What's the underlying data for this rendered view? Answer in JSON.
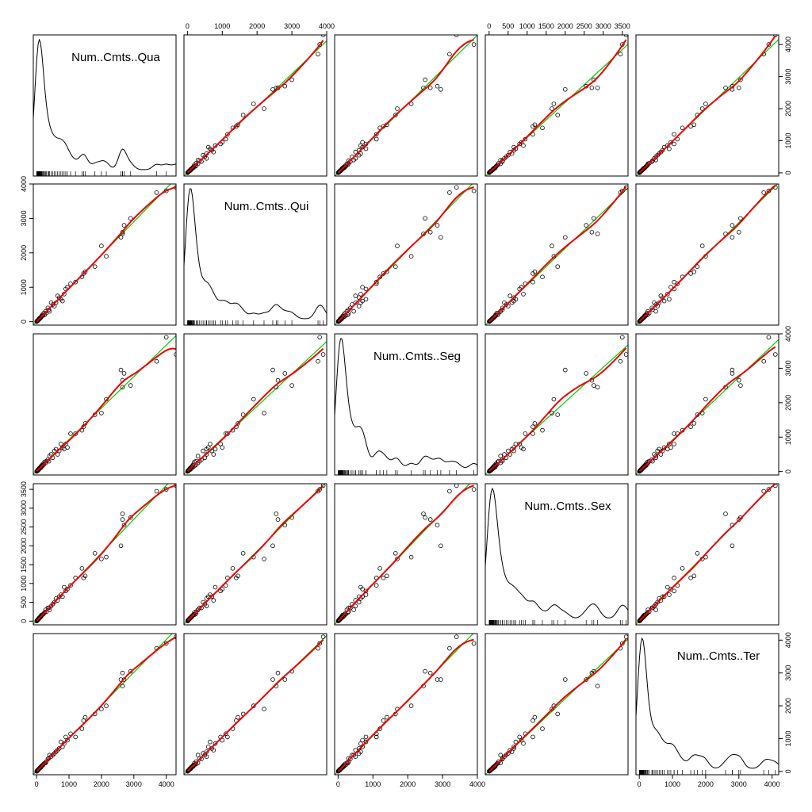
{
  "chart_data": {
    "type": "scatter",
    "variables": [
      "Num..Cmts..Qua",
      "Num..Cmts..Qui",
      "Num..Cmts..Seg",
      "Num..Cmts..Sex",
      "Num..Cmts..Ter"
    ],
    "axis_ranges": [
      [
        -100,
        4300
      ],
      [
        -100,
        4000
      ],
      [
        -100,
        4000
      ],
      [
        -100,
        3650
      ],
      [
        -100,
        4200
      ]
    ],
    "axis_ticks": [
      [
        0,
        1000,
        2000,
        3000,
        4000
      ],
      [
        0,
        1000,
        2000,
        3000,
        4000
      ],
      [
        0,
        1000,
        2000,
        3000,
        4000
      ],
      [
        0,
        500,
        1000,
        1500,
        2000,
        2500,
        3000,
        3500
      ],
      [
        0,
        1000,
        2000,
        3000,
        4000
      ]
    ],
    "panel_content": {
      "diagonal": "density curve with rug marks",
      "off_diagonal": "scatter points with linear fit and smooth fit"
    },
    "colors": {
      "points": "#000000",
      "linear_fit": "#00cc00",
      "smooth_fit": "#ee0000"
    },
    "observations": [
      [
        4300,
        3900,
        3400,
        3600,
        4100
      ],
      [
        4000,
        3800,
        3900,
        3500,
        3900
      ],
      [
        3700,
        3750,
        3200,
        3450,
        3750
      ],
      [
        2900,
        3000,
        2500,
        2750,
        3050
      ],
      [
        2700,
        2800,
        2850,
        2550,
        2800
      ],
      [
        2650,
        2600,
        2650,
        2700,
        3000
      ],
      [
        2650,
        2550,
        2450,
        2850,
        2600
      ],
      [
        2600,
        2450,
        2950,
        2000,
        2800
      ],
      [
        2150,
        1900,
        2100,
        1700,
        2000
      ],
      [
        2000,
        2200,
        1700,
        1650,
        1900
      ],
      [
        1800,
        1600,
        1650,
        1800,
        1750
      ],
      [
        1500,
        1450,
        1400,
        1200,
        1650
      ],
      [
        1450,
        1400,
        1300,
        1150,
        1550
      ],
      [
        1400,
        1300,
        1200,
        1400,
        1300
      ],
      [
        1200,
        1150,
        1100,
        1150,
        1050
      ],
      [
        1050,
        1100,
        1100,
        950,
        1150
      ],
      [
        950,
        1000,
        700,
        850,
        950
      ],
      [
        900,
        950,
        800,
        800,
        1050
      ],
      [
        850,
        800,
        650,
        900,
        850
      ],
      [
        800,
        600,
        700,
        650,
        750
      ],
      [
        750,
        650,
        800,
        700,
        900
      ],
      [
        700,
        700,
        600,
        650,
        700
      ],
      [
        650,
        750,
        500,
        550,
        650
      ],
      [
        600,
        550,
        650,
        600,
        600
      ],
      [
        550,
        450,
        600,
        500,
        550
      ],
      [
        500,
        500,
        400,
        450,
        500
      ],
      [
        450,
        550,
        500,
        400,
        450
      ],
      [
        400,
        300,
        450,
        300,
        500
      ],
      [
        380,
        350,
        300,
        350,
        400
      ],
      [
        350,
        400,
        350,
        350,
        380
      ],
      [
        300,
        250,
        300,
        250,
        300
      ],
      [
        280,
        300,
        250,
        300,
        260
      ],
      [
        250,
        200,
        280,
        230,
        250
      ],
      [
        220,
        250,
        200,
        200,
        230
      ],
      [
        200,
        180,
        220,
        180,
        200
      ],
      [
        180,
        200,
        160,
        170,
        190
      ],
      [
        160,
        150,
        180,
        150,
        170
      ],
      [
        150,
        160,
        130,
        160,
        150
      ],
      [
        140,
        130,
        150,
        120,
        140
      ],
      [
        130,
        120,
        110,
        130,
        120
      ],
      [
        120,
        110,
        120,
        110,
        130
      ],
      [
        110,
        100,
        100,
        100,
        110
      ],
      [
        100,
        90,
        110,
        90,
        100
      ],
      [
        90,
        100,
        80,
        95,
        90
      ],
      [
        80,
        70,
        90,
        80,
        85
      ],
      [
        70,
        80,
        60,
        70,
        75
      ],
      [
        65,
        60,
        70,
        60,
        65
      ],
      [
        60,
        55,
        50,
        55,
        60
      ],
      [
        55,
        50,
        60,
        45,
        50
      ],
      [
        50,
        45,
        40,
        50,
        45
      ],
      [
        45,
        40,
        45,
        40,
        40
      ],
      [
        40,
        35,
        30,
        35,
        38
      ],
      [
        35,
        30,
        35,
        30,
        32
      ],
      [
        30,
        25,
        25,
        28,
        30
      ],
      [
        25,
        22,
        28,
        20,
        25
      ],
      [
        20,
        18,
        15,
        18,
        20
      ],
      [
        15,
        12,
        18,
        12,
        15
      ],
      [
        12,
        10,
        8,
        10,
        12
      ],
      [
        8,
        6,
        10,
        5,
        8
      ],
      [
        5,
        4,
        3,
        4,
        5
      ]
    ]
  }
}
